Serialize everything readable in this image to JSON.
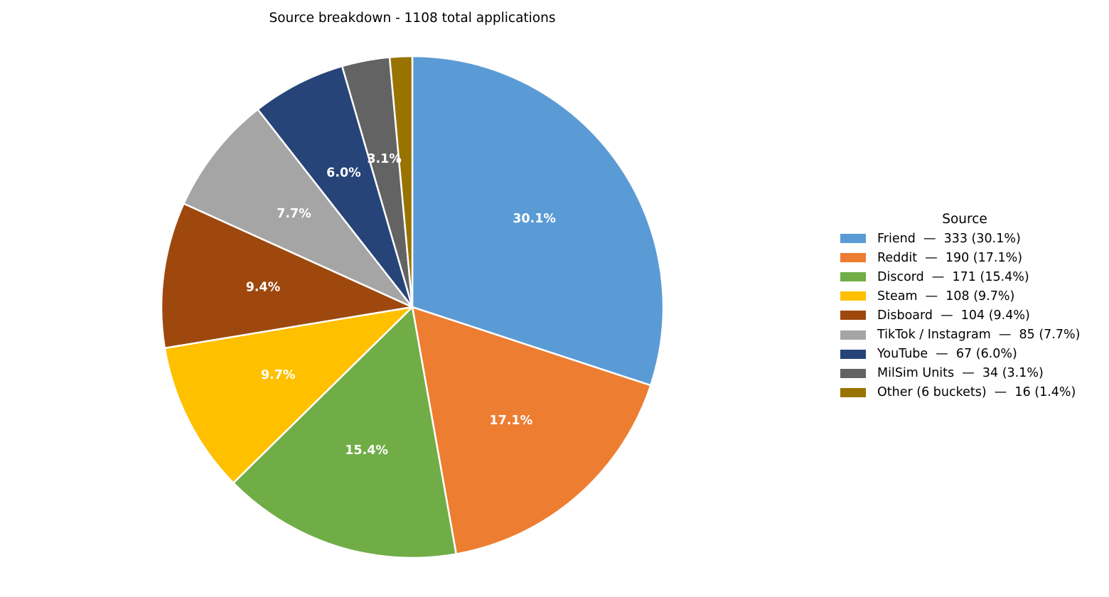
{
  "chart_data": {
    "type": "pie",
    "title": "Source breakdown - 1108 total applications",
    "legend_title": "Source",
    "legend_position": "right",
    "start_angle": "top, clockwise",
    "slices": [
      {
        "label": "Friend",
        "value": 333,
        "pct_label": "30.1%",
        "legend_label": "Friend  —  333 (30.1%)",
        "color": "#5B9BD5"
      },
      {
        "label": "Reddit",
        "value": 190,
        "pct_label": "17.1%",
        "legend_label": "Reddit  —  190 (17.1%)",
        "color": "#ED7D31"
      },
      {
        "label": "Discord",
        "value": 171,
        "pct_label": "15.4%",
        "legend_label": "Discord  —  171 (15.4%)",
        "color": "#70AD47"
      },
      {
        "label": "Steam",
        "value": 108,
        "pct_label": "9.7%",
        "legend_label": "Steam  —  108 (9.7%)",
        "color": "#FFC000"
      },
      {
        "label": "Disboard",
        "value": 104,
        "pct_label": "9.4%",
        "legend_label": "Disboard  —  104 (9.4%)",
        "color": "#9E480E"
      },
      {
        "label": "TikTok / Instagram",
        "value": 85,
        "pct_label": "7.7%",
        "legend_label": "TikTok / Instagram  —  85 (7.7%)",
        "color": "#A5A5A5"
      },
      {
        "label": "YouTube",
        "value": 67,
        "pct_label": "6.0%",
        "legend_label": "YouTube  —  67 (6.0%)",
        "color": "#264478"
      },
      {
        "label": "MilSim Units",
        "value": 34,
        "pct_label": "3.1%",
        "legend_label": "MilSim Units  —  34 (3.1%)",
        "color": "#636363"
      },
      {
        "label": "Other (6 buckets)",
        "value": 16,
        "pct_label": "",
        "legend_label": "Other (6 buckets)  —  16 (1.4%)",
        "color": "#997300"
      }
    ]
  }
}
